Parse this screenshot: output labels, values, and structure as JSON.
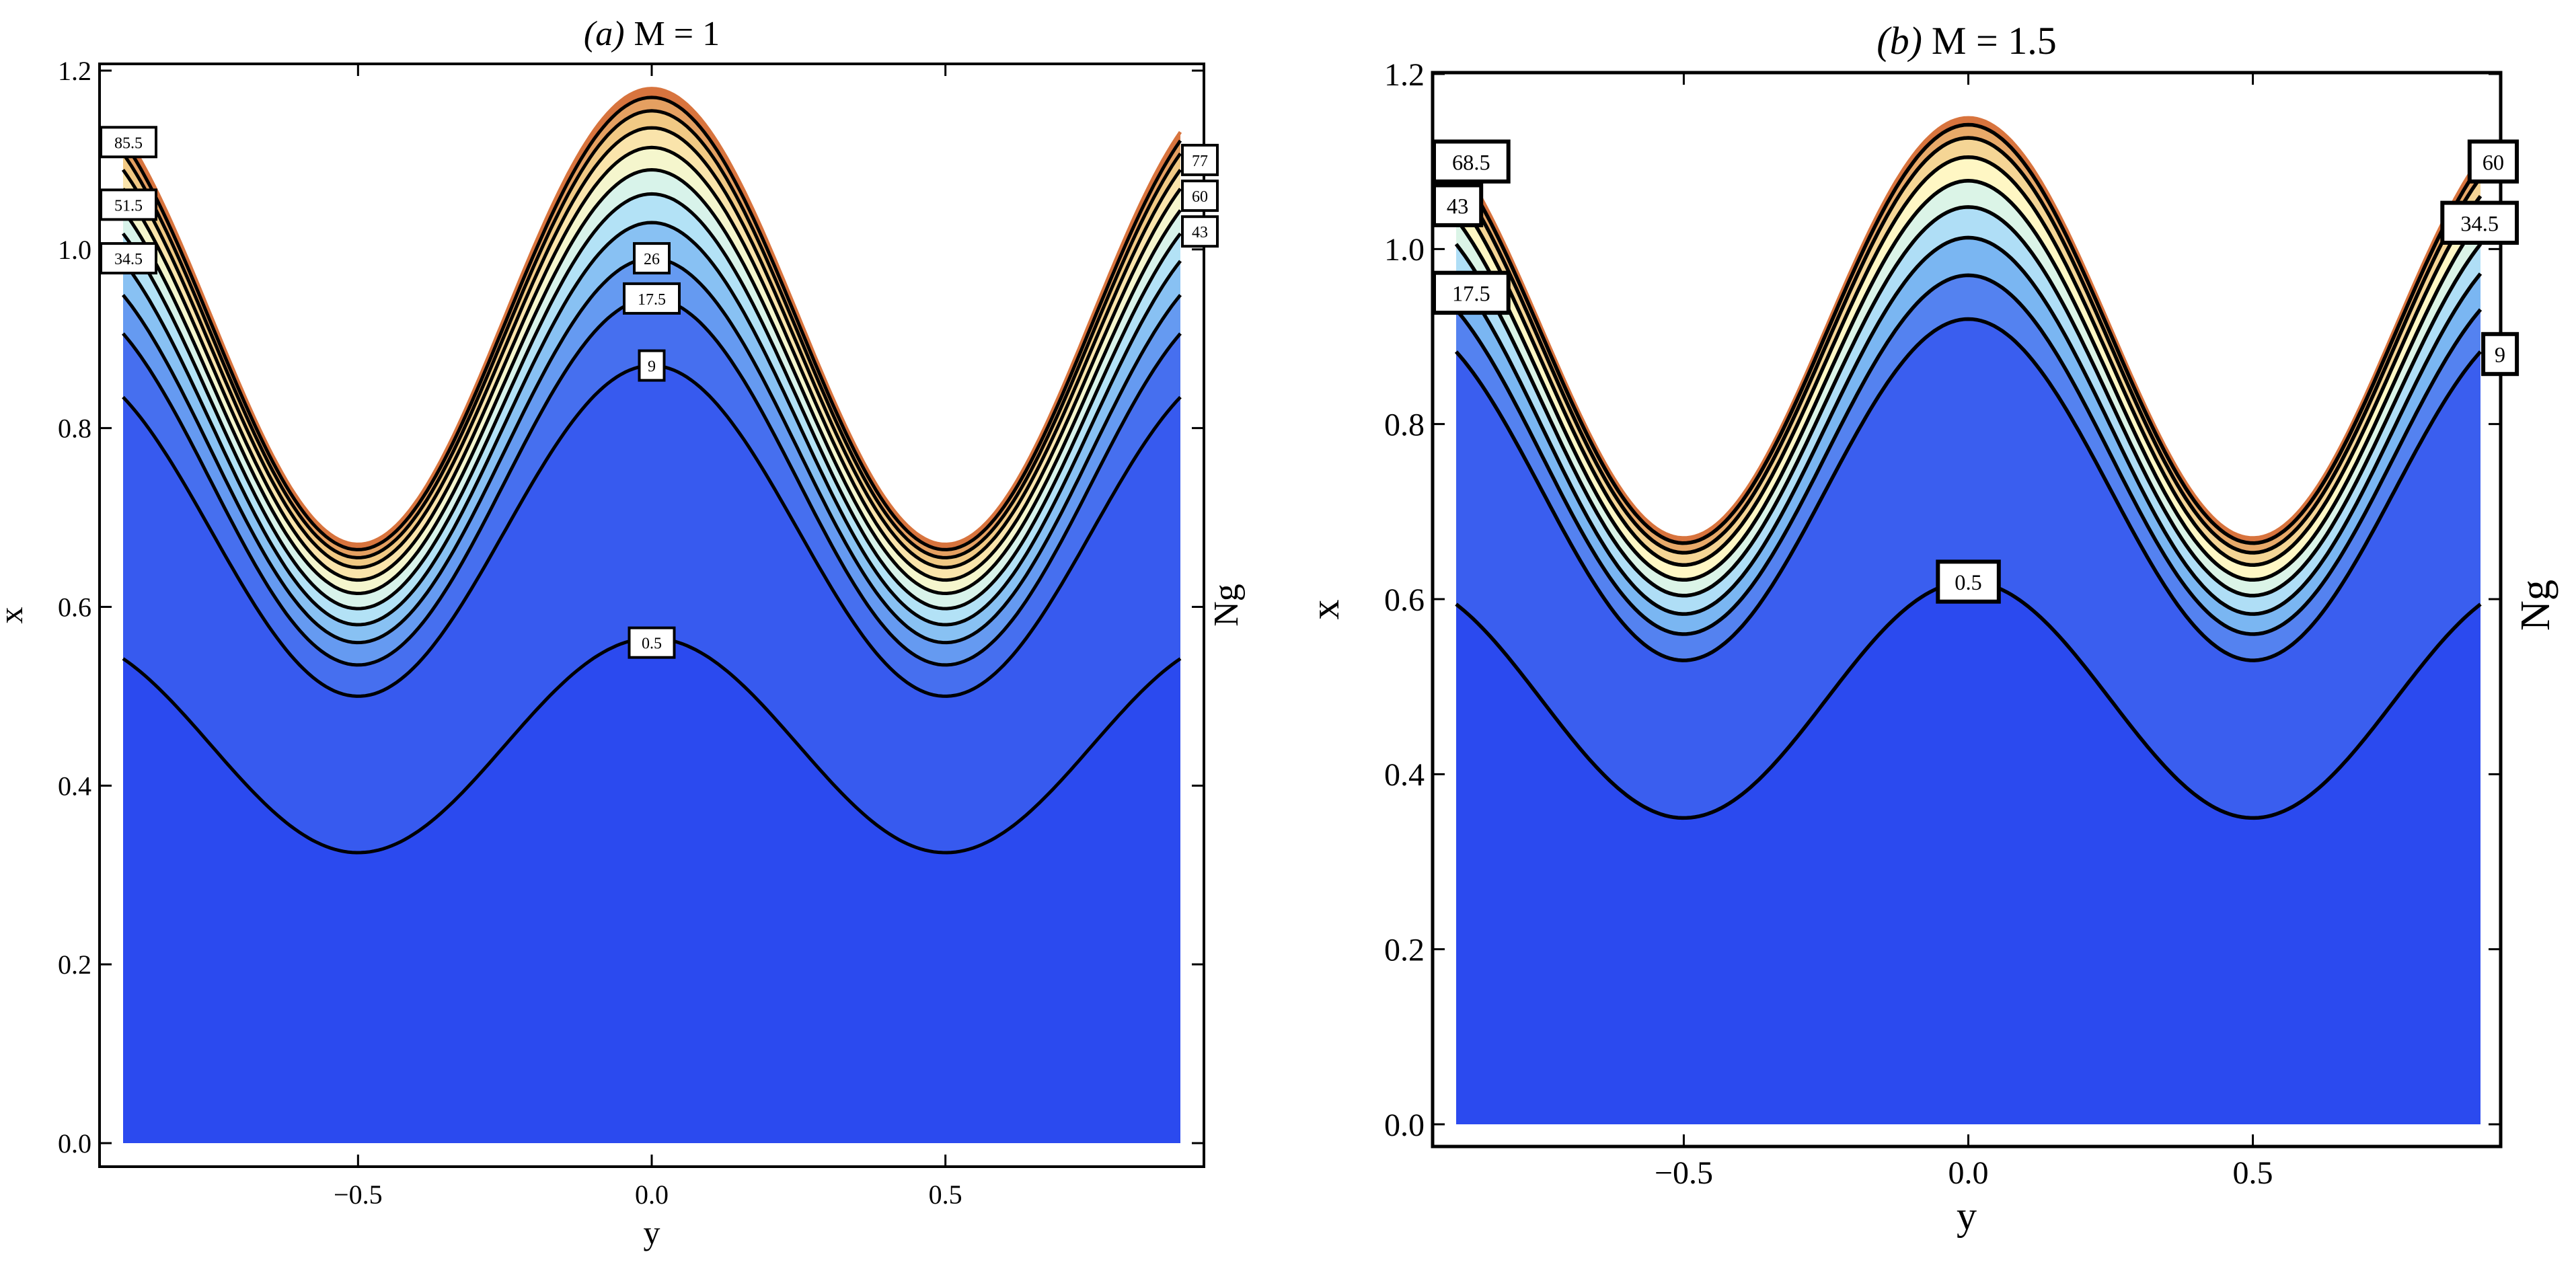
{
  "chart_data": [
    {
      "type": "contour",
      "title_prefix": "(a)",
      "title_main": "M = 1",
      "xlabel": "y",
      "ylabel": "x",
      "legend_label": "Ng",
      "xlim": [
        -0.9,
        0.9
      ],
      "ylim": [
        0.0,
        1.2
      ],
      "x_ticks": [
        -0.5,
        0.0,
        0.5
      ],
      "x_tick_labels": [
        "−0.5",
        "0.0",
        "0.5"
      ],
      "y_ticks": [
        0.0,
        0.2,
        0.4,
        0.6,
        0.8,
        1.0,
        1.2
      ],
      "y_tick_labels": [
        "0.0",
        "0.2",
        "0.4",
        "0.6",
        "0.8",
        "1.0",
        "1.2"
      ],
      "wall": {
        "mean": 0.925,
        "amplitude": 0.255
      },
      "contours": [
        {
          "level": "0.5",
          "mean": 0.445,
          "amplitude": 0.12
        },
        {
          "level": "9",
          "mean": 0.685,
          "amplitude": 0.185
        },
        {
          "level": "17.5",
          "mean": 0.74,
          "amplitude": 0.205
        },
        {
          "level": "26",
          "mean": 0.775,
          "amplitude": 0.215
        },
        {
          "level": "34.5",
          "mean": 0.805,
          "amplitude": 0.225
        },
        {
          "level": "43",
          "mean": 0.83,
          "amplitude": 0.232
        },
        {
          "level": "51.5",
          "mean": 0.852,
          "amplitude": 0.237
        },
        {
          "level": "60",
          "mean": 0.872,
          "amplitude": 0.242
        },
        {
          "level": "68.5",
          "mean": 0.89,
          "amplitude": 0.246
        },
        {
          "level": "77",
          "mean": 0.905,
          "amplitude": 0.25
        },
        {
          "level": "85.5",
          "mean": 0.917,
          "amplitude": 0.253
        }
      ],
      "labels": [
        {
          "text": "0.5",
          "y": 0.0,
          "x": 0.56
        },
        {
          "text": "9",
          "y": 0.0,
          "x": 0.87
        },
        {
          "text": "17.5",
          "y": 0.0,
          "x": 0.945
        },
        {
          "text": "26",
          "y": 0.0,
          "x": 0.99
        },
        {
          "text": "85.5",
          "y": -0.9,
          "x": 1.12
        },
        {
          "text": "51.5",
          "y": -0.9,
          "x": 1.05
        },
        {
          "text": "34.5",
          "y": -0.9,
          "x": 0.99
        },
        {
          "text": "77",
          "y": 0.9,
          "x": 1.1
        },
        {
          "text": "60",
          "y": 0.9,
          "x": 1.06
        },
        {
          "text": "43",
          "y": 0.9,
          "x": 1.02
        }
      ]
    },
    {
      "type": "contour",
      "title_prefix": "(b)",
      "title_main": "M = 1.5",
      "xlabel": "y",
      "ylabel": "x",
      "legend_label": "Ng",
      "xlim": [
        -0.9,
        0.9
      ],
      "ylim": [
        0.0,
        1.2
      ],
      "x_ticks": [
        -0.5,
        0.0,
        0.5
      ],
      "x_tick_labels": [
        "−0.5",
        "0.0",
        "0.5"
      ],
      "y_ticks": [
        0.0,
        0.2,
        0.4,
        0.6,
        0.8,
        1.0,
        1.2
      ],
      "y_tick_labels": [
        "0.0",
        "0.2",
        "0.4",
        "0.6",
        "0.8",
        "1.0",
        "1.2"
      ],
      "wall": {
        "mean": 0.91,
        "amplitude": 0.24
      },
      "contours": [
        {
          "level": "0.5",
          "mean": 0.485,
          "amplitude": 0.135
        },
        {
          "level": "9",
          "mean": 0.725,
          "amplitude": 0.195
        },
        {
          "level": "17.5",
          "mean": 0.765,
          "amplitude": 0.205
        },
        {
          "level": "26",
          "mean": 0.798,
          "amplitude": 0.215
        },
        {
          "level": "34.5",
          "mean": 0.826,
          "amplitude": 0.222
        },
        {
          "level": "43",
          "mean": 0.85,
          "amplitude": 0.228
        },
        {
          "level": "51.5",
          "mean": 0.872,
          "amplitude": 0.233
        },
        {
          "level": "60",
          "mean": 0.89,
          "amplitude": 0.237
        },
        {
          "level": "68.5",
          "mean": 0.903,
          "amplitude": 0.239
        }
      ],
      "labels": [
        {
          "text": "0.5",
          "y": 0.0,
          "x": 0.62
        },
        {
          "text": "68.5",
          "y": -0.9,
          "x": 1.1
        },
        {
          "text": "43",
          "y": -0.9,
          "x": 1.05
        },
        {
          "text": "17.5",
          "y": -0.9,
          "x": 0.95
        },
        {
          "text": "60",
          "y": 0.9,
          "x": 1.1
        },
        {
          "text": "34.5",
          "y": 0.9,
          "x": 1.03
        },
        {
          "text": "9",
          "y": 0.9,
          "x": 0.88
        }
      ]
    }
  ],
  "colors": {
    "band_lowest": "#2b4aef",
    "band_low": "#4168ef",
    "band_mid": "#7ab6f2",
    "band_light": "#c9f2f8",
    "band_cream": "#fff7c4",
    "band_tan": "#f0c47e",
    "band_top": "#d8743e",
    "line": "#000000",
    "frame": "#000000"
  }
}
